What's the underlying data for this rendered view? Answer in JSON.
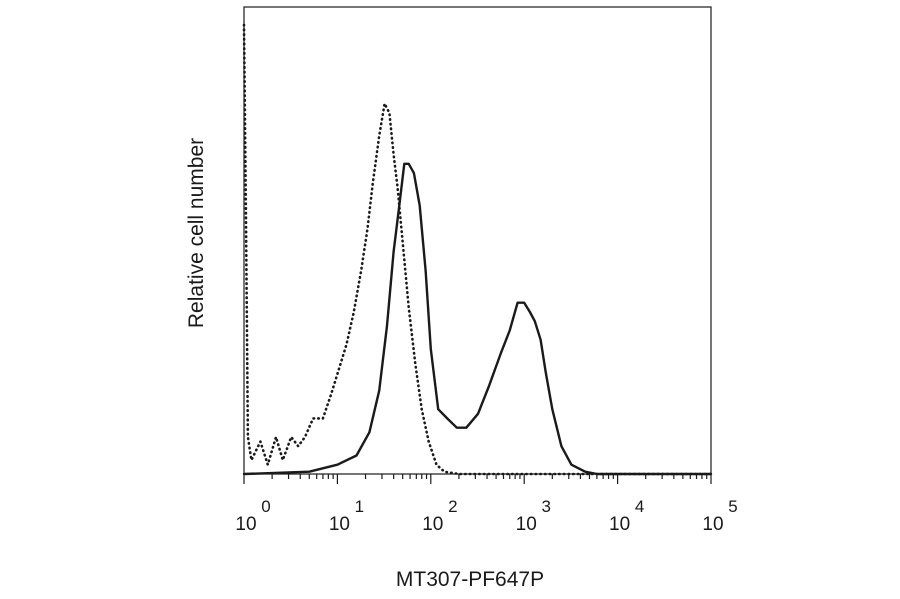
{
  "chart_data": {
    "type": "line",
    "title": "",
    "xlabel": "MT307-PF647P",
    "ylabel": "Relative cell number",
    "x_scale": "log",
    "xlim": [
      1,
      100000
    ],
    "ylim": [
      0,
      1
    ],
    "grid": false,
    "legend": "none",
    "x_ticks": [
      {
        "base": "10",
        "exp": "0",
        "value": 1
      },
      {
        "base": "10",
        "exp": "1",
        "value": 10
      },
      {
        "base": "10",
        "exp": "2",
        "value": 100
      },
      {
        "base": "10",
        "exp": "3",
        "value": 1000
      },
      {
        "base": "10",
        "exp": "4",
        "value": 10000
      },
      {
        "base": "10",
        "exp": "5",
        "value": 100000
      }
    ],
    "series": [
      {
        "style": "dotted",
        "color": "#1a1a1a",
        "points": [
          [
            1.0,
            0.97
          ],
          [
            1.05,
            0.55
          ],
          [
            1.1,
            0.08
          ],
          [
            1.2,
            0.03
          ],
          [
            1.5,
            0.07
          ],
          [
            1.8,
            0.02
          ],
          [
            2.2,
            0.08
          ],
          [
            2.6,
            0.03
          ],
          [
            3.2,
            0.08
          ],
          [
            3.8,
            0.06
          ],
          [
            4.5,
            0.08
          ],
          [
            5.5,
            0.12
          ],
          [
            7.0,
            0.12
          ],
          [
            8.5,
            0.17
          ],
          [
            10.5,
            0.23
          ],
          [
            12.5,
            0.28
          ],
          [
            15,
            0.35
          ],
          [
            18,
            0.44
          ],
          [
            21,
            0.53
          ],
          [
            24,
            0.63
          ],
          [
            28,
            0.73
          ],
          [
            32,
            0.8
          ],
          [
            36,
            0.78
          ],
          [
            40,
            0.69
          ],
          [
            44,
            0.62
          ],
          [
            50,
            0.5
          ],
          [
            58,
            0.36
          ],
          [
            68,
            0.24
          ],
          [
            80,
            0.14
          ],
          [
            95,
            0.07
          ],
          [
            115,
            0.02
          ],
          [
            140,
            0.005
          ],
          [
            200,
            0.0
          ],
          [
            100000,
            0.0
          ]
        ]
      },
      {
        "style": "solid",
        "color": "#1a1a1a",
        "points": [
          [
            1.0,
            0.0
          ],
          [
            5,
            0.005
          ],
          [
            10,
            0.02
          ],
          [
            16,
            0.04
          ],
          [
            22,
            0.09
          ],
          [
            28,
            0.18
          ],
          [
            34,
            0.32
          ],
          [
            40,
            0.48
          ],
          [
            46,
            0.58
          ],
          [
            52,
            0.67
          ],
          [
            58,
            0.67
          ],
          [
            66,
            0.65
          ],
          [
            76,
            0.58
          ],
          [
            88,
            0.44
          ],
          [
            100,
            0.27
          ],
          [
            120,
            0.14
          ],
          [
            150,
            0.12
          ],
          [
            190,
            0.1
          ],
          [
            240,
            0.1
          ],
          [
            320,
            0.13
          ],
          [
            420,
            0.19
          ],
          [
            560,
            0.26
          ],
          [
            700,
            0.31
          ],
          [
            850,
            0.37
          ],
          [
            1000,
            0.37
          ],
          [
            1150,
            0.35
          ],
          [
            1300,
            0.33
          ],
          [
            1500,
            0.29
          ],
          [
            1700,
            0.22
          ],
          [
            2000,
            0.14
          ],
          [
            2500,
            0.06
          ],
          [
            3200,
            0.02
          ],
          [
            4500,
            0.005
          ],
          [
            6000,
            0.0
          ],
          [
            100000,
            0.0
          ]
        ]
      }
    ]
  }
}
